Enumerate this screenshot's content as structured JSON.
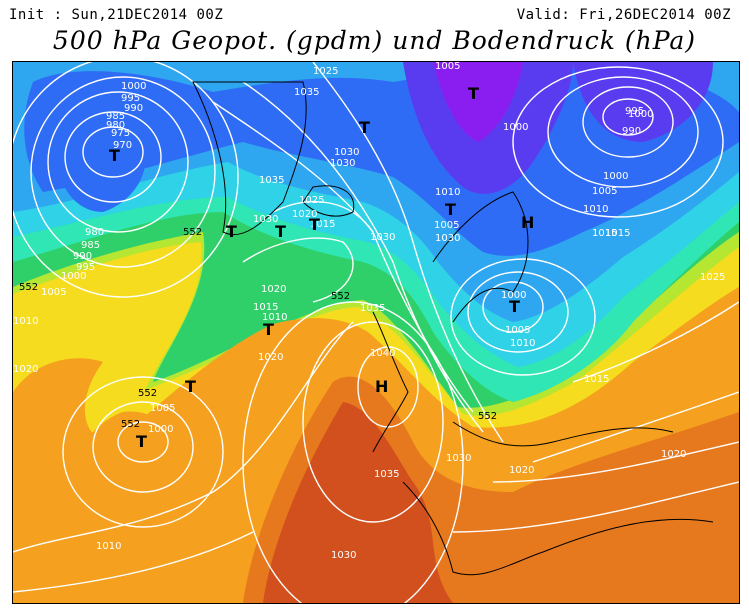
{
  "header": {
    "init": "Init : Sun,21DEC2014 00Z",
    "valid": "Valid: Fri,26DEC2014 00Z",
    "title": "500 hPa Geopot. (gpdm) und Bodendruck (hPa)"
  },
  "colors": {
    "purple": "#8a1ef0",
    "violet": "#5a3cf0",
    "blue": "#2f6cf5",
    "light_blue": "#2fa6f0",
    "cyan": "#2fd2e6",
    "teal": "#2fe6b4",
    "green": "#2fd06a",
    "yellow_green": "#b4e632",
    "yellow": "#f5dc1e",
    "orange": "#f5a01e",
    "dark_orange": "#e6781e",
    "red_orange": "#d2501e",
    "isobar": "#ffffff",
    "coast": "#000000"
  },
  "pressure_labels": [
    "1000",
    "995",
    "990",
    "985",
    "980",
    "975",
    "970",
    "980",
    "985",
    "990",
    "995",
    "1000",
    "1005",
    "1025",
    "1035",
    "1030",
    "1030",
    "1035",
    "1030",
    "1025",
    "1020",
    "1015",
    "1030",
    "1020",
    "1015",
    "1010",
    "1005",
    "1000",
    "1010",
    "1005",
    "1000",
    "995",
    "990",
    "1000",
    "1005",
    "1010",
    "1015",
    "1000",
    "1005",
    "1010",
    "1015",
    "1030",
    "1040",
    "1035",
    "1020",
    "1025",
    "1020",
    "1005",
    "1000",
    "1015",
    "1030",
    "1020",
    "1035",
    "1030",
    "1010",
    "1010",
    "1020"
  ],
  "geopotential_labels": [
    "552",
    "552",
    "552",
    "552",
    "552",
    "552"
  ],
  "centers": {
    "lows": [
      "T",
      "T",
      "T",
      "T",
      "T",
      "T",
      "T",
      "T",
      "T",
      "T",
      "T"
    ],
    "highs": [
      "H",
      "H"
    ]
  }
}
